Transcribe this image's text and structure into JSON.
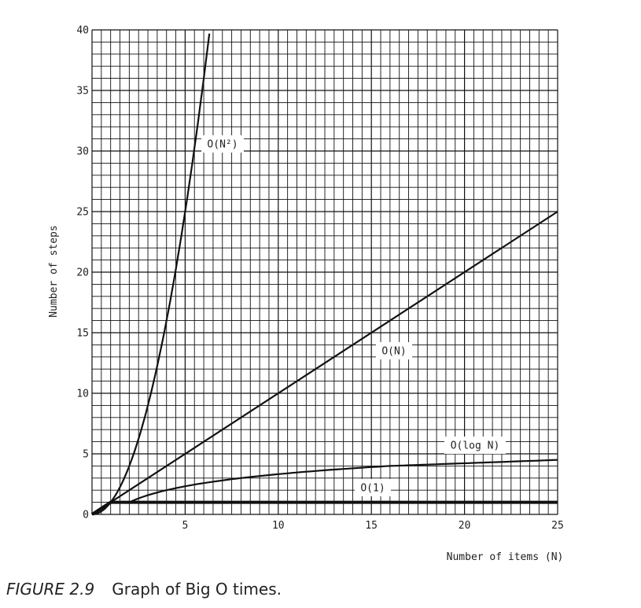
{
  "caption": {
    "figure_number": "FIGURE 2.9",
    "text": "Graph of Big O times."
  },
  "chart_data": {
    "type": "line",
    "title": "",
    "xlabel": "Number of items (N)",
    "ylabel": "Number of steps",
    "xlim": [
      0,
      25
    ],
    "ylim": [
      0,
      40
    ],
    "grid": true,
    "x_ticks": [
      5,
      10,
      15,
      20,
      25
    ],
    "y_ticks": [
      0,
      5,
      10,
      15,
      20,
      25,
      30,
      35,
      40
    ],
    "series": [
      {
        "name": "O(1)",
        "label_display": "O(1)",
        "x": [
          0,
          1,
          25
        ],
        "y": [
          0,
          1,
          1
        ]
      },
      {
        "name": "O(log N)",
        "label_display": "O(log N)",
        "x": [
          0,
          2,
          4,
          8,
          16,
          25
        ],
        "y": [
          0,
          1,
          2,
          3,
          4,
          4.5
        ]
      },
      {
        "name": "O(N)",
        "label_display": "O(N)",
        "x": [
          0,
          25
        ],
        "y": [
          0,
          25
        ]
      },
      {
        "name": "O(N²)",
        "label_display": "O(N²)",
        "x": [
          0,
          1,
          2,
          3,
          4,
          5,
          6,
          6.35
        ],
        "y": [
          0,
          1,
          4,
          9,
          16,
          25,
          36,
          40
        ]
      }
    ]
  }
}
